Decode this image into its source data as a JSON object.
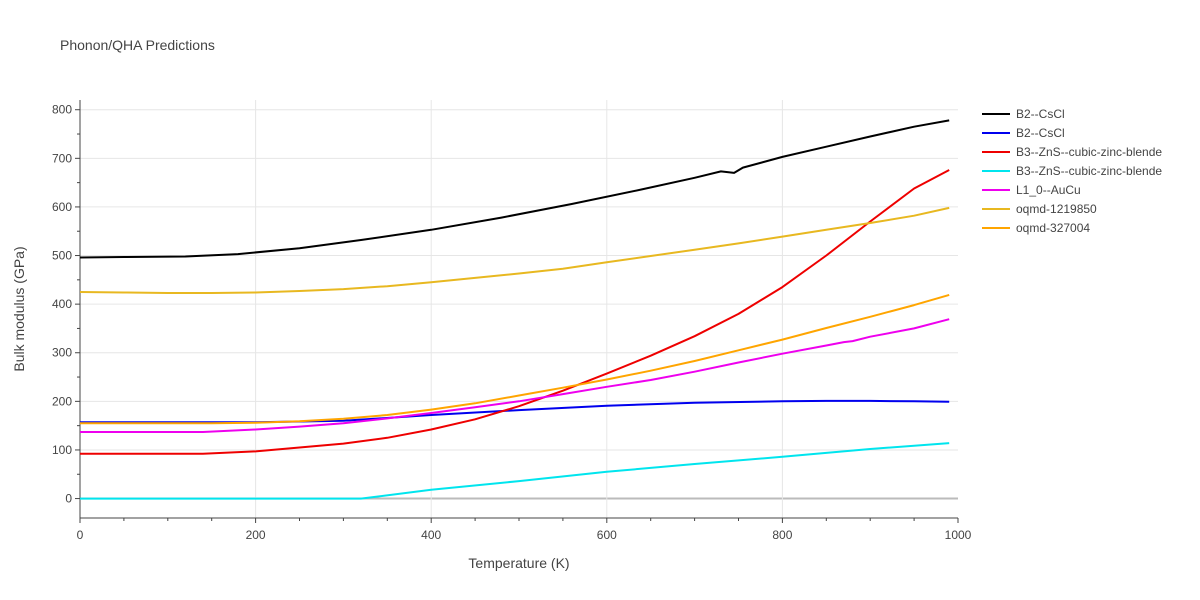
{
  "chart_data": {
    "type": "line",
    "title": "Phonon/QHA Predictions",
    "xlabel": "Temperature (K)",
    "ylabel": "Bulk modulus (GPa)",
    "xlim": [
      0,
      1000
    ],
    "ylim": [
      -40,
      820
    ],
    "xticks": [
      0,
      200,
      400,
      600,
      800,
      1000
    ],
    "yticks": [
      0,
      100,
      200,
      300,
      400,
      500,
      600,
      700,
      800
    ],
    "grid": true,
    "legend_position": "right",
    "series": [
      {
        "name": "B2--CsCl",
        "color": "#000000",
        "x": [
          0,
          50,
          120,
          180,
          250,
          320,
          400,
          480,
          560,
          640,
          700,
          730,
          740,
          745,
          755,
          800,
          850,
          900,
          950,
          990
        ],
        "y": [
          496,
          497,
          498,
          503,
          515,
          532,
          553,
          578,
          606,
          636,
          660,
          673,
          671,
          670,
          681,
          703,
          724,
          745,
          765,
          778
        ]
      },
      {
        "name": "B2--CsCl",
        "color": "#0000ee",
        "x": [
          0,
          100,
          200,
          300,
          400,
          500,
          600,
          700,
          800,
          850,
          900,
          950,
          990
        ],
        "y": [
          157,
          157,
          157,
          160,
          172,
          182,
          191,
          197,
          200,
          201,
          201,
          200,
          199
        ]
      },
      {
        "name": "B3--ZnS--cubic-zinc-blende",
        "color": "#ee0000",
        "x": [
          0,
          50,
          100,
          140,
          200,
          250,
          300,
          350,
          400,
          450,
          500,
          550,
          600,
          650,
          700,
          750,
          800,
          850,
          900,
          950,
          990
        ],
        "y": [
          92,
          92,
          92,
          92,
          97,
          105,
          113,
          125,
          142,
          163,
          190,
          222,
          257,
          294,
          334,
          380,
          435,
          500,
          570,
          638,
          676
        ]
      },
      {
        "name": "B3--ZnS--cubic-zinc-blende",
        "color": "#00e5ee",
        "x": [
          0,
          100,
          200,
          300,
          320,
          400,
          500,
          600,
          700,
          800,
          900,
          990
        ],
        "y": [
          0,
          0,
          0,
          0,
          0,
          18,
          36,
          55,
          71,
          86,
          102,
          114
        ]
      },
      {
        "name": "L1_0--AuCu",
        "color": "#ee00ee",
        "x": [
          0,
          50,
          100,
          140,
          200,
          250,
          300,
          350,
          400,
          450,
          500,
          550,
          600,
          650,
          700,
          750,
          800,
          850,
          870,
          880,
          900,
          950,
          990
        ],
        "y": [
          137,
          137,
          137,
          137,
          142,
          148,
          155,
          165,
          176,
          188,
          200,
          215,
          230,
          244,
          261,
          280,
          298,
          315,
          322,
          324,
          333,
          350,
          369
        ]
      },
      {
        "name": "oqmd-1219850",
        "color": "#e8b820",
        "x": [
          0,
          50,
          100,
          150,
          200,
          250,
          300,
          350,
          400,
          450,
          500,
          550,
          600,
          650,
          700,
          750,
          800,
          850,
          900,
          950,
          990
        ],
        "y": [
          425,
          424,
          423,
          423,
          424,
          427,
          431,
          437,
          445,
          454,
          463,
          473,
          486,
          499,
          512,
          525,
          539,
          553,
          567,
          582,
          598
        ]
      },
      {
        "name": "oqmd-327004",
        "color": "#ffa500",
        "x": [
          0,
          50,
          100,
          150,
          200,
          250,
          300,
          350,
          400,
          450,
          500,
          550,
          600,
          650,
          700,
          750,
          800,
          850,
          900,
          950,
          990
        ],
        "y": [
          155,
          155,
          155,
          155,
          156,
          159,
          164,
          172,
          183,
          196,
          212,
          228,
          245,
          263,
          283,
          305,
          327,
          351,
          374,
          398,
          419
        ]
      }
    ]
  }
}
